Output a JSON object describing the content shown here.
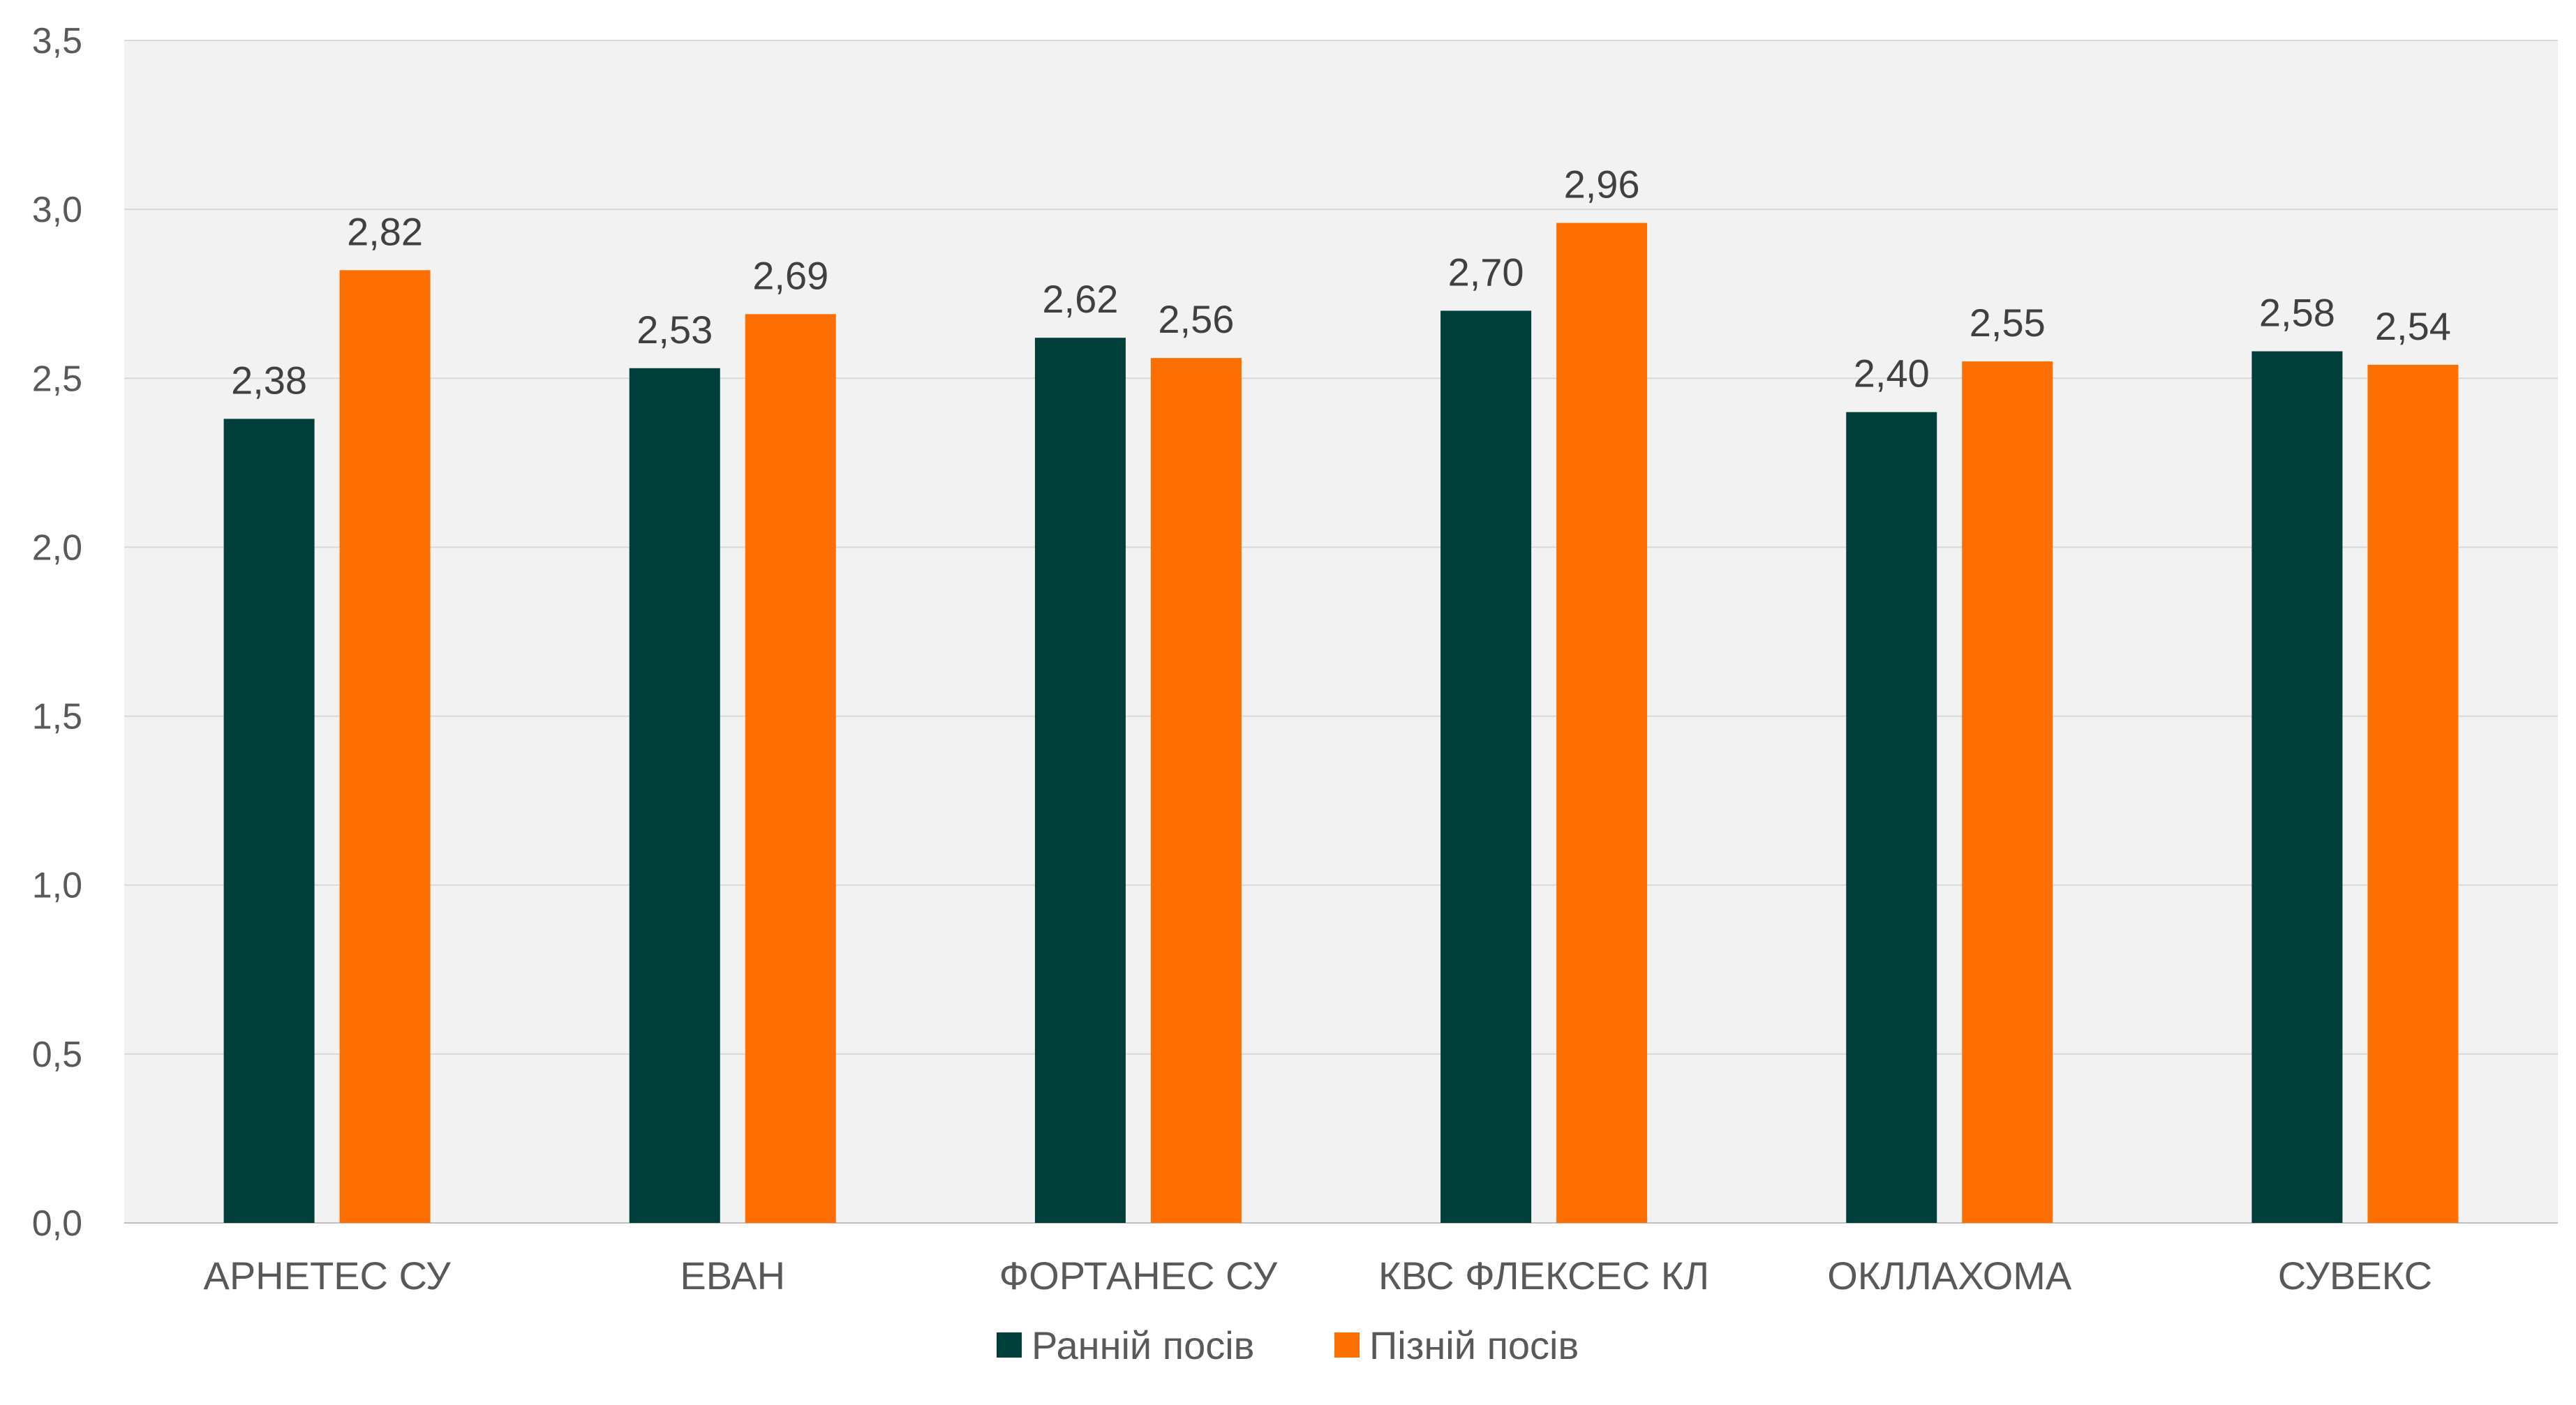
{
  "chart_data": {
    "type": "bar",
    "categories": [
      "АРНЕТЕС СУ",
      "ЕВАН",
      "ФОРТАНЕС СУ",
      "КВС ФЛЕКСЕС КЛ",
      "ОКЛЛАХОМА",
      "СУВЕКС"
    ],
    "series": [
      {
        "name": "Ранній посів",
        "color": "#003f3a",
        "values": [
          2.38,
          2.53,
          2.62,
          2.7,
          2.4,
          2.58
        ],
        "labels": [
          "2,38",
          "2,53",
          "2,62",
          "2,70",
          "2,40",
          "2,58"
        ]
      },
      {
        "name": "Пізній посів",
        "color": "#ff6f00",
        "values": [
          2.82,
          2.69,
          2.56,
          2.96,
          2.55,
          2.54
        ],
        "labels": [
          "2,82",
          "2,69",
          "2,56",
          "2,96",
          "2,55",
          "2,54"
        ]
      }
    ],
    "yticks": [
      "0,0",
      "0,5",
      "1,0",
      "1,5",
      "2,0",
      "2,5",
      "3,0",
      "3,5"
    ],
    "ylim": [
      0,
      3.5
    ],
    "title": "",
    "xlabel": "",
    "ylabel": "",
    "grid": true,
    "legend_position": "bottom-center",
    "plot_background": "#f2f2f2"
  }
}
